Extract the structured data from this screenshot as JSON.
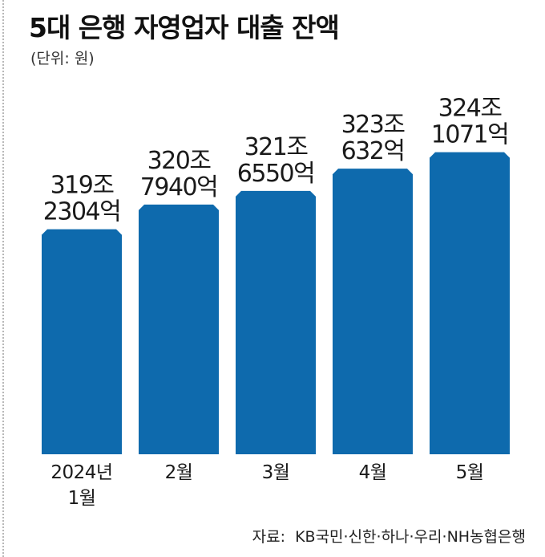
{
  "title": "5대 은행 자영업자 대출 잔액",
  "unit": "(단위: 원)",
  "source": {
    "label": "자료:",
    "text": "KB국민·신한·하나·우리·NH농협은행"
  },
  "colors": {
    "bar": "#0e6aad",
    "text": "#1a1a1a"
  },
  "chart_data": {
    "type": "bar",
    "title": "5대 은행 자영업자 대출 잔액",
    "ylabel": "",
    "xlabel": "",
    "categories": [
      [
        "2024년",
        "1월"
      ],
      [
        "2월"
      ],
      [
        "3월"
      ],
      [
        "4월"
      ],
      [
        "5월"
      ]
    ],
    "values": [
      319.2304,
      320.794,
      321.655,
      323.0632,
      324.1071
    ],
    "data_labels": [
      [
        "319조",
        "2304억"
      ],
      [
        "320조",
        "7940억"
      ],
      [
        "321조",
        "6550억"
      ],
      [
        "323조",
        "632억"
      ],
      [
        "324조",
        "1071억"
      ]
    ],
    "ylim": [
      305,
      325
    ],
    "grid": false,
    "legend": "none"
  }
}
